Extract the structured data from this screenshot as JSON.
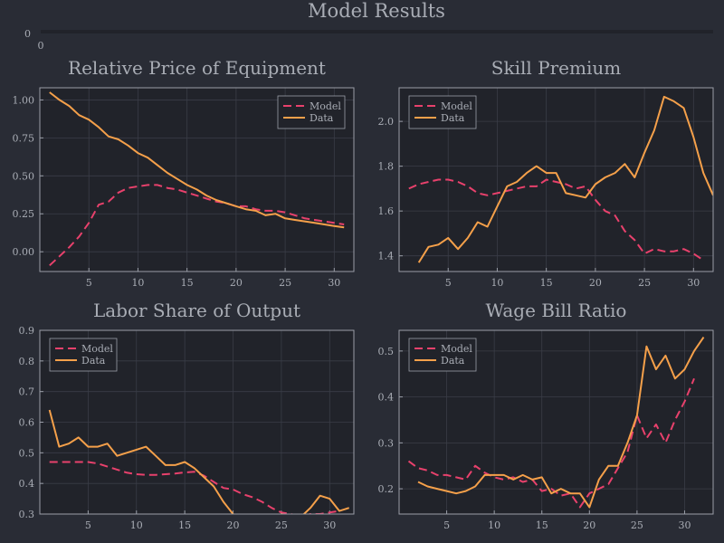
{
  "figure": {
    "title": "Model Results",
    "title_axis": {
      "ytick": "0",
      "xtick": "0"
    }
  },
  "colors": {
    "background": "#292c35",
    "plot_background": "#21232a",
    "model": "#e8416c",
    "data": "#f5a04a",
    "text": "#a9adb5",
    "axis": "#9a9ea8"
  },
  "chart_data": [
    {
      "type": "line",
      "title": "Relative Price of Equipment",
      "legend_position": "top-right",
      "xlim": [
        0,
        32
      ],
      "ylim": [
        -0.13,
        1.08
      ],
      "xticks": [
        5,
        10,
        15,
        20,
        25,
        30
      ],
      "yticks": [
        0,
        0.25,
        0.5,
        0.75,
        1.0
      ],
      "ytick_labels": [
        "0.00",
        "0.25",
        "0.50",
        "0.75",
        "1.00"
      ],
      "grid": true,
      "series": [
        {
          "name": "Model",
          "style": "dashed",
          "x": [
            1,
            2,
            3,
            4,
            5,
            6,
            7,
            8,
            9,
            10,
            11,
            12,
            13,
            14,
            15,
            16,
            17,
            18,
            19,
            20,
            21,
            22,
            23,
            24,
            25,
            26,
            27,
            28,
            29,
            30,
            31
          ],
          "y": [
            -0.09,
            -0.03,
            0.03,
            0.1,
            0.19,
            0.31,
            0.33,
            0.39,
            0.42,
            0.43,
            0.44,
            0.44,
            0.42,
            0.41,
            0.39,
            0.37,
            0.35,
            0.33,
            0.32,
            0.3,
            0.3,
            0.28,
            0.27,
            0.27,
            0.26,
            0.24,
            0.22,
            0.21,
            0.2,
            0.19,
            0.18
          ]
        },
        {
          "name": "Data",
          "style": "solid",
          "x": [
            1,
            2,
            3,
            4,
            5,
            6,
            7,
            8,
            9,
            10,
            11,
            12,
            13,
            14,
            15,
            16,
            17,
            18,
            19,
            20,
            21,
            22,
            23,
            24,
            25,
            26,
            27,
            28,
            29,
            30,
            31
          ],
          "y": [
            1.05,
            1.0,
            0.96,
            0.9,
            0.87,
            0.82,
            0.76,
            0.74,
            0.7,
            0.65,
            0.62,
            0.57,
            0.52,
            0.48,
            0.44,
            0.41,
            0.37,
            0.34,
            0.32,
            0.3,
            0.28,
            0.27,
            0.24,
            0.25,
            0.22,
            0.21,
            0.2,
            0.19,
            0.18,
            0.17,
            0.16
          ]
        }
      ]
    },
    {
      "type": "line",
      "title": "Skill Premium",
      "legend_position": "top-left",
      "xlim": [
        0,
        32
      ],
      "ylim": [
        1.33,
        2.15
      ],
      "xticks": [
        5,
        10,
        15,
        20,
        25,
        30
      ],
      "yticks": [
        1.4,
        1.6,
        1.8,
        2.0
      ],
      "ytick_labels": [
        "1.4",
        "1.6",
        "1.8",
        "2.0"
      ],
      "grid": true,
      "series": [
        {
          "name": "Model",
          "style": "dashed",
          "x": [
            1,
            2,
            3,
            4,
            5,
            6,
            7,
            8,
            9,
            10,
            11,
            12,
            13,
            14,
            15,
            16,
            17,
            18,
            19,
            20,
            21,
            22,
            23,
            24,
            25,
            26,
            27,
            28,
            29,
            30,
            31
          ],
          "y": [
            1.7,
            1.72,
            1.73,
            1.74,
            1.74,
            1.73,
            1.71,
            1.68,
            1.67,
            1.68,
            1.69,
            1.7,
            1.71,
            1.71,
            1.74,
            1.73,
            1.72,
            1.7,
            1.71,
            1.65,
            1.6,
            1.58,
            1.51,
            1.47,
            1.41,
            1.43,
            1.42,
            1.42,
            1.43,
            1.41,
            1.38
          ]
        },
        {
          "name": "Data",
          "style": "solid",
          "x": [
            2,
            3,
            4,
            5,
            6,
            7,
            8,
            9,
            10,
            11,
            12,
            13,
            14,
            15,
            16,
            17,
            18,
            19,
            20,
            21,
            22,
            23,
            24,
            25,
            26,
            27,
            28,
            29,
            30,
            31,
            32
          ],
          "y": [
            1.37,
            1.44,
            1.45,
            1.48,
            1.43,
            1.48,
            1.55,
            1.53,
            1.62,
            1.71,
            1.73,
            1.77,
            1.8,
            1.77,
            1.77,
            1.68,
            1.67,
            1.66,
            1.72,
            1.75,
            1.77,
            1.81,
            1.75,
            1.86,
            1.96,
            2.11,
            2.09,
            2.06,
            1.93,
            1.77,
            1.67
          ]
        }
      ]
    },
    {
      "type": "line",
      "title": "Labor Share of Output",
      "legend_position": "top-left",
      "xlim": [
        0,
        32.5
      ],
      "ylim": [
        0.3,
        0.9
      ],
      "xticks": [
        5,
        10,
        15,
        20,
        25,
        30
      ],
      "yticks": [
        0.3,
        0.4,
        0.5,
        0.6,
        0.7,
        0.8,
        0.9
      ],
      "ytick_labels": [
        "0.3",
        "0.4",
        "0.5",
        "0.6",
        "0.7",
        "0.8",
        "0.9"
      ],
      "grid": true,
      "series": [
        {
          "name": "Model",
          "style": "dashed",
          "x": [
            1,
            2,
            3,
            4,
            5,
            6,
            7,
            8,
            9,
            10,
            11,
            12,
            13,
            14,
            15,
            16,
            17,
            18,
            19,
            20,
            21,
            22,
            23,
            24,
            25,
            26,
            27,
            28,
            29,
            30,
            31
          ],
          "y": [
            0.47,
            0.47,
            0.47,
            0.47,
            0.47,
            0.465,
            0.455,
            0.445,
            0.435,
            0.43,
            0.428,
            0.428,
            0.43,
            0.432,
            0.436,
            0.438,
            0.425,
            0.405,
            0.385,
            0.38,
            0.365,
            0.355,
            0.34,
            0.32,
            0.305,
            0.3,
            0.29,
            0.3,
            0.3,
            0.305,
            0.31
          ]
        },
        {
          "name": "Data",
          "style": "solid",
          "x": [
            1,
            2,
            3,
            4,
            5,
            6,
            7,
            8,
            9,
            10,
            11,
            12,
            13,
            14,
            15,
            16,
            17,
            18,
            19,
            20,
            21,
            22,
            23,
            24,
            25,
            26,
            27,
            28,
            29,
            30,
            31,
            32
          ],
          "y": [
            0.64,
            0.52,
            0.53,
            0.55,
            0.52,
            0.52,
            0.53,
            0.49,
            0.5,
            0.51,
            0.52,
            0.49,
            0.46,
            0.46,
            0.47,
            0.45,
            0.42,
            0.39,
            0.34,
            0.3,
            0.28,
            0.27,
            0.27,
            0.27,
            0.3,
            0.29,
            0.29,
            0.32,
            0.36,
            0.35,
            0.31,
            0.32
          ]
        }
      ]
    },
    {
      "type": "line",
      "title": "Wage Bill Ratio",
      "legend_position": "top-left",
      "xlim": [
        0,
        33
      ],
      "ylim": [
        0.145,
        0.545
      ],
      "xticks": [
        5,
        10,
        15,
        20,
        25,
        30
      ],
      "yticks": [
        0.2,
        0.3,
        0.4,
        0.5
      ],
      "ytick_labels": [
        "0.2",
        "0.3",
        "0.4",
        "0.5"
      ],
      "grid": true,
      "series": [
        {
          "name": "Model",
          "style": "dashed",
          "x": [
            1,
            2,
            3,
            4,
            5,
            6,
            7,
            8,
            9,
            10,
            11,
            12,
            13,
            14,
            15,
            16,
            17,
            18,
            19,
            20,
            21,
            22,
            23,
            24,
            25,
            26,
            27,
            28,
            29,
            30,
            31
          ],
          "y": [
            0.26,
            0.245,
            0.24,
            0.23,
            0.23,
            0.225,
            0.22,
            0.25,
            0.235,
            0.225,
            0.22,
            0.225,
            0.215,
            0.22,
            0.195,
            0.2,
            0.185,
            0.19,
            0.16,
            0.19,
            0.2,
            0.21,
            0.245,
            0.28,
            0.36,
            0.31,
            0.34,
            0.3,
            0.35,
            0.39,
            0.44
          ]
        },
        {
          "name": "Data",
          "style": "solid",
          "x": [
            2,
            3,
            4,
            5,
            6,
            7,
            8,
            9,
            10,
            11,
            12,
            13,
            14,
            15,
            16,
            17,
            18,
            19,
            20,
            21,
            22,
            23,
            24,
            25,
            26,
            27,
            28,
            29,
            30,
            31,
            32
          ],
          "y": [
            0.215,
            0.205,
            0.2,
            0.195,
            0.19,
            0.195,
            0.205,
            0.23,
            0.23,
            0.23,
            0.22,
            0.23,
            0.22,
            0.225,
            0.19,
            0.2,
            0.19,
            0.19,
            0.16,
            0.22,
            0.25,
            0.25,
            0.3,
            0.36,
            0.51,
            0.46,
            0.49,
            0.44,
            0.46,
            0.5,
            0.53
          ]
        }
      ]
    }
  ]
}
